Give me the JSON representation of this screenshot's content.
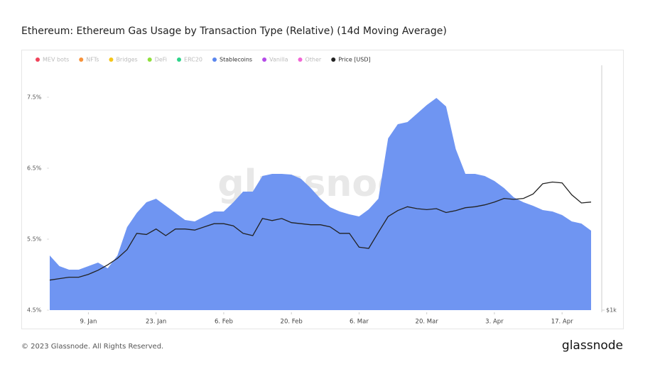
{
  "chart_data": {
    "type": "area",
    "title": "Ethereum: Ethereum Gas Usage by Transaction Type (Relative) (14d Moving Average)",
    "watermark": "glassnode",
    "legend": [
      {
        "name": "MEV bots",
        "color": "#f0435a",
        "active": false
      },
      {
        "name": "NFTs",
        "color": "#f7923a",
        "active": false
      },
      {
        "name": "Bridges",
        "color": "#f5c518",
        "active": false
      },
      {
        "name": "DeFi",
        "color": "#8fe03c",
        "active": false
      },
      {
        "name": "ERC20",
        "color": "#2ed48a",
        "active": false
      },
      {
        "name": "Stablecoins",
        "color": "#5b86ee",
        "active": true
      },
      {
        "name": "Vanilla",
        "color": "#b44ae8",
        "active": false
      },
      {
        "name": "Other",
        "color": "#f266d6",
        "active": false
      },
      {
        "name": "Price [USD]",
        "color": "#222222",
        "active": true
      }
    ],
    "categories": [
      null,
      null,
      null,
      null,
      "9. Jan",
      null,
      null,
      null,
      null,
      null,
      null,
      "23. Jan",
      null,
      null,
      null,
      null,
      null,
      null,
      "6. Feb",
      null,
      null,
      null,
      null,
      null,
      null,
      "20. Feb",
      null,
      null,
      null,
      null,
      null,
      null,
      "6. Mar",
      null,
      null,
      null,
      null,
      null,
      null,
      "20. Mar",
      null,
      null,
      null,
      null,
      null,
      null,
      "3. Apr",
      null,
      null,
      null,
      null,
      null,
      null,
      "17. Apr",
      null,
      null,
      null
    ],
    "series": [
      {
        "name": "Stablecoins",
        "color": "#6f95f2",
        "values": [
          5.27,
          5.12,
          5.07,
          5.07,
          5.12,
          5.17,
          5.09,
          5.27,
          5.67,
          5.87,
          6.02,
          6.07,
          5.97,
          5.87,
          5.77,
          5.75,
          5.82,
          5.89,
          5.89,
          6.02,
          6.17,
          6.17,
          6.39,
          6.42,
          6.42,
          6.41,
          6.35,
          6.22,
          6.07,
          5.95,
          5.89,
          5.85,
          5.82,
          5.92,
          6.07,
          6.92,
          7.12,
          7.15,
          7.27,
          7.39,
          7.49,
          7.37,
          6.77,
          6.42,
          6.42,
          6.39,
          6.32,
          6.22,
          6.09,
          6.02,
          5.97,
          5.91,
          5.89,
          5.84,
          5.75,
          5.72,
          5.62
        ]
      },
      {
        "name": "Price [USD]",
        "color": "#222222",
        "axis": "y2",
        "values": [
          1190,
          1200,
          1210,
          1210,
          1230,
          1260,
          1300,
          1350,
          1420,
          1560,
          1550,
          1600,
          1540,
          1600,
          1600,
          1590,
          1620,
          1650,
          1650,
          1630,
          1560,
          1540,
          1700,
          1680,
          1700,
          1660,
          1650,
          1640,
          1640,
          1620,
          1560,
          1560,
          1440,
          1430,
          1570,
          1720,
          1780,
          1820,
          1800,
          1790,
          1800,
          1760,
          1780,
          1810,
          1820,
          1840,
          1870,
          1910,
          1900,
          1910,
          1960,
          2080,
          2100,
          2090,
          1950,
          1860,
          1870
        ]
      }
    ],
    "ylim": [
      4.5,
      7.95
    ],
    "yticks": [
      {
        "value": 4.5,
        "label": "4.5%"
      },
      {
        "value": 5.5,
        "label": "5.5%"
      },
      {
        "value": 6.5,
        "label": "6.5%"
      },
      {
        "value": 7.5,
        "label": "7.5%"
      }
    ],
    "y2lim": [
      1000,
      4130
    ],
    "y2log": true,
    "y2ticks": [
      {
        "value": 1000,
        "label": "$1k"
      }
    ],
    "footer": "© 2023 Glassnode. All Rights Reserved.",
    "logo": "glassnode"
  }
}
